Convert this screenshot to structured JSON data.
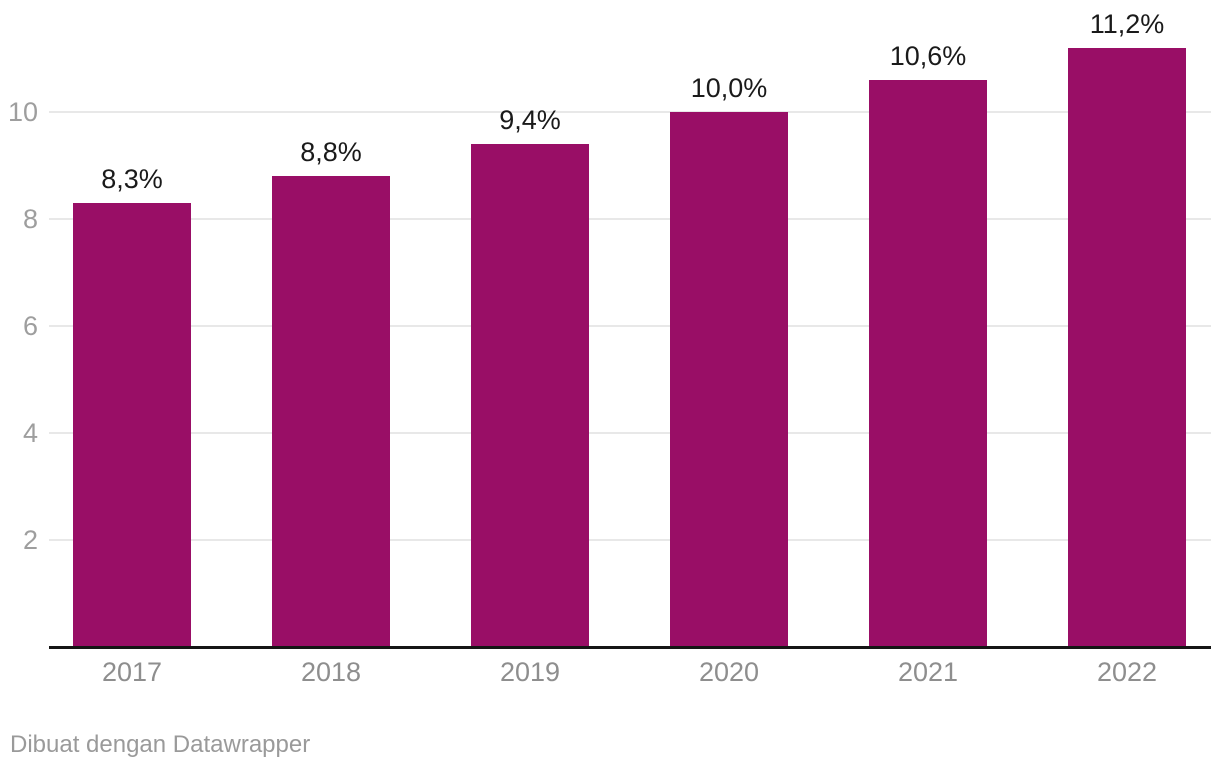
{
  "footer": {
    "prefix": "Dibuat dengan ",
    "link_label": "Datawrapper"
  },
  "colors": {
    "bar": "#990e66",
    "gridline": "#e8e8e8",
    "axis_line": "#151515",
    "value_label": "#1a1a1a",
    "x_tick_label": "#8e8e8e",
    "y_tick_label": "#9e9e9e",
    "footer_text": "#9a9a9a",
    "background": "#ffffff"
  },
  "chart_data": {
    "type": "bar",
    "categories": [
      "2017",
      "2018",
      "2019",
      "2020",
      "2021",
      "2022"
    ],
    "values": [
      8.3,
      8.8,
      9.4,
      10.0,
      10.6,
      11.2
    ],
    "value_labels": [
      "8,3%",
      "8,8%",
      "9,4%",
      "10,0%",
      "10,6%",
      "11,2%"
    ],
    "title": "",
    "xlabel": "",
    "ylabel": "",
    "yticks": [
      2,
      4,
      6,
      8,
      10
    ],
    "ylim": [
      0,
      11.6
    ],
    "grid": "horizontal",
    "legend": "none",
    "value_label_position": "above-bar",
    "number_format": "decimal-comma-percent"
  }
}
